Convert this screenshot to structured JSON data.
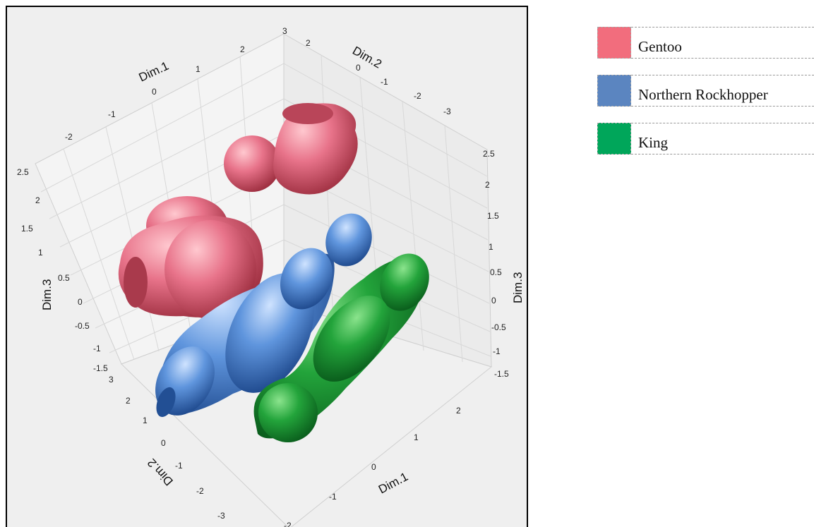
{
  "chart_data": {
    "type": "3d-density-isosurface",
    "axes": {
      "x": {
        "label": "Dim.1",
        "ticks_top": [
          "-2",
          "-1",
          "0",
          "1",
          "2"
        ],
        "ticks_bottom": [
          "-2",
          "-1",
          "0",
          "1",
          "2"
        ],
        "range": [
          -2,
          2
        ]
      },
      "y": {
        "label": "Dim.2",
        "ticks_top": [
          "2",
          "0",
          "-1",
          "-2",
          "-3"
        ],
        "ticks_bottom": [
          "3",
          "2",
          "1",
          "0",
          "-1",
          "-2",
          "-3"
        ],
        "range": [
          -3,
          3
        ]
      },
      "z": {
        "label": "Dim.3",
        "ticks": [
          "-1.5",
          "-1",
          "-0.5",
          "0",
          "0.5",
          "1",
          "1.5",
          "2",
          "2.5"
        ],
        "range": [
          -1.5,
          2.5
        ]
      },
      "top_corner_tick": "3"
    },
    "series": [
      {
        "name": "Gentoo",
        "color": "#f16b7a"
      },
      {
        "name": "Northern Rockhopper",
        "color": "#4f86c6"
      },
      {
        "name": "King",
        "color": "#12a04a"
      }
    ],
    "grid": true,
    "legend_position": "right"
  },
  "legend": {
    "items": [
      {
        "label": "Gentoo",
        "color": "#f26d7d"
      },
      {
        "label": "Northern Rockhopper",
        "color": "#5b85c0"
      },
      {
        "label": "King",
        "color": "#00a65a"
      }
    ]
  }
}
